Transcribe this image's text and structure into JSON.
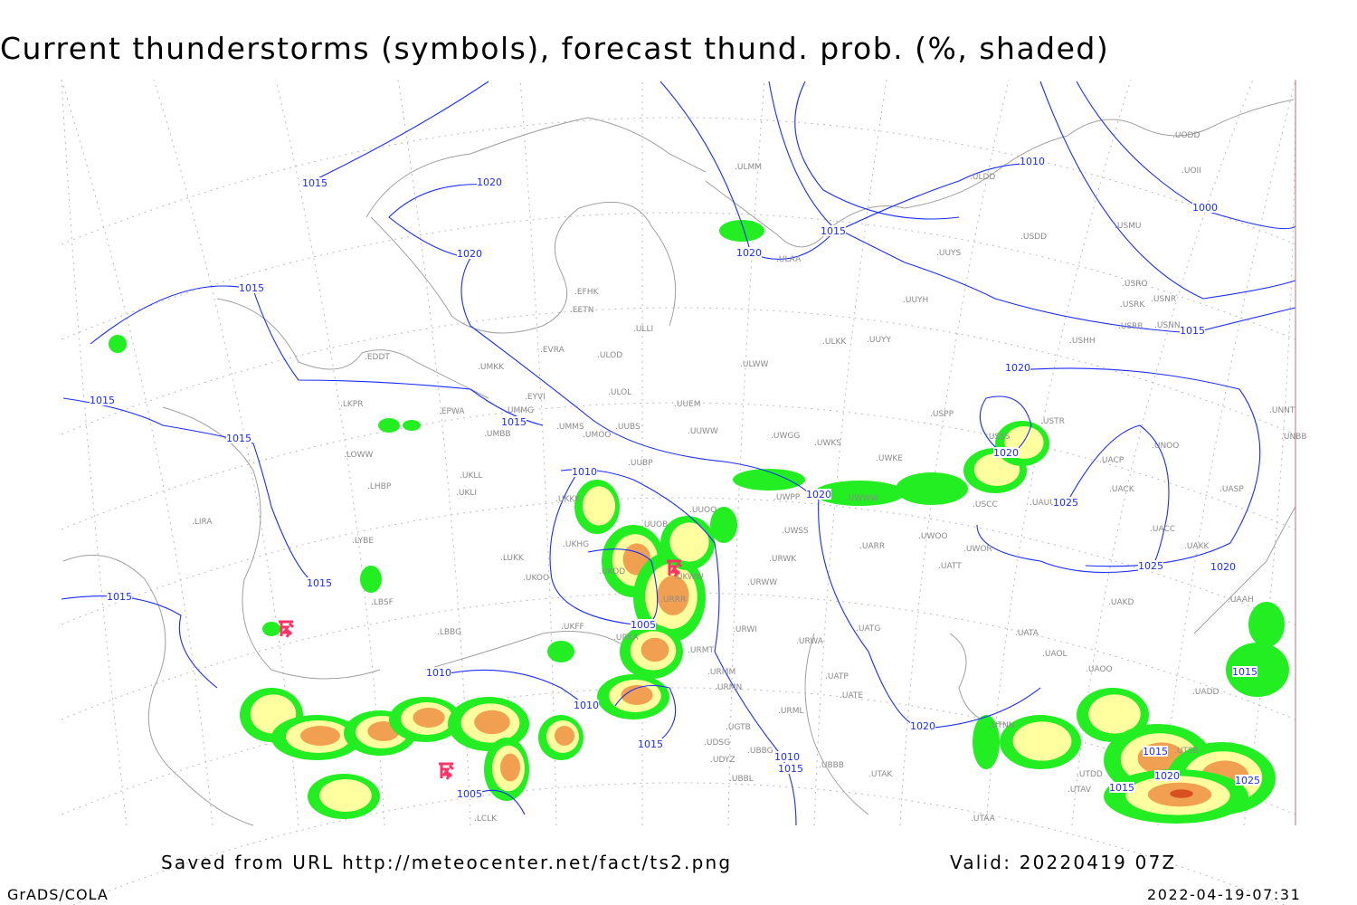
{
  "title": "Current thunderstorms (symbols), forecast thund. prob. (%, shaded)",
  "footer": {
    "saved": "Saved from URL http://meteocenter.net/fact/ts2.png",
    "valid": "Valid: 20220419 07Z",
    "software": "GrADS/COLA",
    "timestamp": "2022-04-19-07:31"
  },
  "colors": {
    "isobar": "#1a2cff",
    "coast": "#a0a0a0",
    "prob_low": "#22ee22",
    "prob_mid": "#ffffa0",
    "prob_high": "#f0a050",
    "prob_max": "#d85020",
    "storm_symbol": "#ff3366"
  },
  "stations": [
    "ULMM",
    "ULDD",
    "UODD",
    "UOII",
    "USDD",
    "USMU",
    "UUYS",
    "ULAA",
    "USRO",
    "USRK",
    "USNR",
    "USRR",
    "USNN",
    "UUYH",
    "USHH",
    "EFHK",
    "EETN",
    "ULLI",
    "EVRA",
    "ULOD",
    "ULKK",
    "UUYY",
    "ULWW",
    "EDDT",
    "UMKK",
    "EYVI",
    "ULOL",
    "UUEM",
    "LKPR",
    "EPWA",
    "UMMG",
    "UMMS",
    "UUBS",
    "UUWW",
    "UMBB",
    "UMOO",
    "UWGG",
    "UWKS",
    "USPP",
    "USTR",
    "USSS",
    "UNNT",
    "UNBB",
    "LOWW",
    "UKLL",
    "UKLI",
    "UUBP",
    "UWKE",
    "UNOO",
    "UACP",
    "UACK",
    "UASP",
    "LHBP",
    "UKKK",
    "UUOO",
    "UWPP",
    "UWWW",
    "USCC",
    "UAUU",
    "UUOB",
    "LIRA",
    "LYBE",
    "UKHG",
    "UWSS",
    "UARR",
    "UWOO",
    "UWOR",
    "UACC",
    "UAKK",
    "LUKK",
    "URWK",
    "UATT",
    "UKOO",
    "URWW",
    "UKDD",
    "URRR",
    "LBSF",
    "UAKD",
    "UAAH",
    "UKFF",
    "URWI",
    "LBBG",
    "UATG",
    "UATA",
    "URKA",
    "URMT",
    "URWA",
    "UAOL",
    "URMM",
    "UATP",
    "UAOO",
    "URMN",
    "UATE",
    "UADD",
    "URML",
    "UTNN",
    "UGTB",
    "UTDD",
    "UDSG",
    "UBBG",
    "UTSB",
    "UDYZ",
    "UBBB",
    "UTAK",
    "UBBL",
    "UTAV",
    "UTAA",
    "LCLK",
    "UKWW"
  ],
  "isobar_labels": [
    "1015",
    "1020",
    "1020",
    "1015",
    "1015",
    "1015",
    "1015",
    "1010",
    "1010",
    "1000",
    "1015",
    "1020",
    "1015",
    "1020",
    "1020",
    "1020",
    "1025",
    "1025",
    "1020",
    "1015",
    "1015",
    "1005",
    "1010",
    "1010",
    "1015",
    "1010",
    "1015",
    "1020",
    "1005",
    "1015",
    "1015",
    "1020",
    "1025",
    "1015"
  ],
  "storm_symbol": "thunderstorm"
}
